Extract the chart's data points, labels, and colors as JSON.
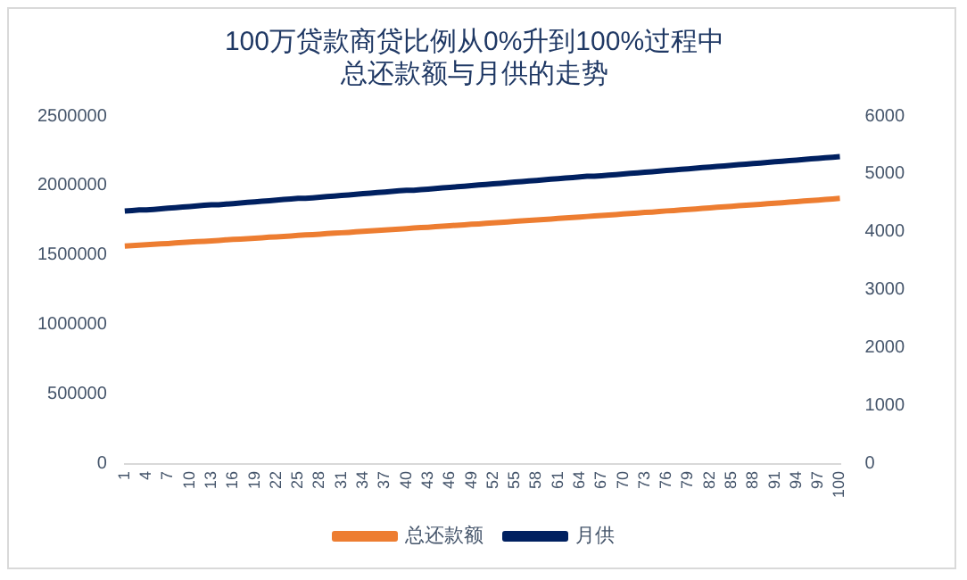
{
  "chart_data": {
    "type": "line",
    "title": "100万贷款商贷比例从0%升到100%过程中总还款额与月供的走势",
    "categories": [
      "1",
      null,
      null,
      "4",
      null,
      null,
      "7",
      null,
      null,
      "10",
      null,
      null,
      "13",
      null,
      null,
      "16",
      null,
      null,
      "19",
      null,
      null,
      "22",
      null,
      null,
      "25",
      null,
      null,
      "28",
      null,
      null,
      "31",
      null,
      null,
      "34",
      null,
      null,
      "37",
      null,
      null,
      "40",
      null,
      null,
      "43",
      null,
      null,
      "46",
      null,
      null,
      "49",
      null,
      null,
      "52",
      null,
      null,
      "55",
      null,
      null,
      "58",
      null,
      null,
      "61",
      null,
      null,
      "64",
      null,
      null,
      "67",
      null,
      null,
      "70",
      null,
      null,
      "73",
      null,
      null,
      "76",
      null,
      null,
      "79",
      null,
      null,
      "82",
      null,
      null,
      "85",
      null,
      null,
      "88",
      null,
      null,
      "91",
      null,
      null,
      "94",
      null,
      null,
      "97",
      null,
      null,
      "100"
    ],
    "series": [
      {
        "name": "总还款额",
        "color": "#ed7d31",
        "values": [
          1566000,
          1569000,
          1572000,
          1575000,
          1578000,
          1581000,
          1584000,
          1588000,
          1591000,
          1594000,
          1597000,
          1600000,
          1603000,
          1606000,
          1610000,
          1613000,
          1616000,
          1619000,
          1622000,
          1625000,
          1629000,
          1632000,
          1635000,
          1638000,
          1642000,
          1645000,
          1648000,
          1651000,
          1655000,
          1658000,
          1661000,
          1664000,
          1668000,
          1671000,
          1674000,
          1678000,
          1681000,
          1684000,
          1688000,
          1691000,
          1695000,
          1698000,
          1701000,
          1705000,
          1708000,
          1712000,
          1715000,
          1718000,
          1722000,
          1725000,
          1729000,
          1732000,
          1736000,
          1739000,
          1743000,
          1746000,
          1750000,
          1753000,
          1757000,
          1760000,
          1764000,
          1767000,
          1771000,
          1774000,
          1778000,
          1782000,
          1785000,
          1789000,
          1792000,
          1796000,
          1800000,
          1803000,
          1807000,
          1810000,
          1814000,
          1818000,
          1821000,
          1825000,
          1829000,
          1832000,
          1836000,
          1840000,
          1844000,
          1847000,
          1851000,
          1855000,
          1859000,
          1862000,
          1866000,
          1870000,
          1874000,
          1877000,
          1881000,
          1885000,
          1889000,
          1893000,
          1896000,
          1900000,
          1904000,
          1908000
        ]
      },
      {
        "name": "月供",
        "color": "#002060",
        "axis": "y2",
        "values": [
          4360,
          4370,
          4380,
          4380,
          4390,
          4400,
          4410,
          4420,
          4430,
          4440,
          4450,
          4460,
          4470,
          4470,
          4480,
          4490,
          4500,
          4510,
          4520,
          4530,
          4540,
          4550,
          4560,
          4570,
          4580,
          4580,
          4590,
          4600,
          4610,
          4620,
          4630,
          4640,
          4650,
          4660,
          4670,
          4680,
          4690,
          4700,
          4710,
          4720,
          4720,
          4730,
          4740,
          4750,
          4760,
          4770,
          4780,
          4790,
          4800,
          4810,
          4820,
          4830,
          4840,
          4850,
          4860,
          4870,
          4880,
          4890,
          4900,
          4910,
          4920,
          4930,
          4940,
          4950,
          4960,
          4960,
          4970,
          4980,
          4990,
          5000,
          5010,
          5020,
          5030,
          5040,
          5050,
          5060,
          5070,
          5080,
          5090,
          5100,
          5110,
          5120,
          5130,
          5140,
          5150,
          5160,
          5170,
          5180,
          5190,
          5200,
          5210,
          5220,
          5230,
          5240,
          5250,
          5260,
          5270,
          5280,
          5290,
          5300
        ]
      }
    ],
    "ylim": [
      0,
      2500000
    ],
    "yticks": [
      0,
      500000,
      1000000,
      1500000,
      2000000,
      2500000
    ],
    "y2lim": [
      0,
      6000
    ],
    "y2ticks": [
      0,
      1000,
      2000,
      3000,
      4000,
      5000,
      6000
    ],
    "grid": false,
    "legend": "bottom",
    "marker": "none",
    "line_style": "solid"
  }
}
